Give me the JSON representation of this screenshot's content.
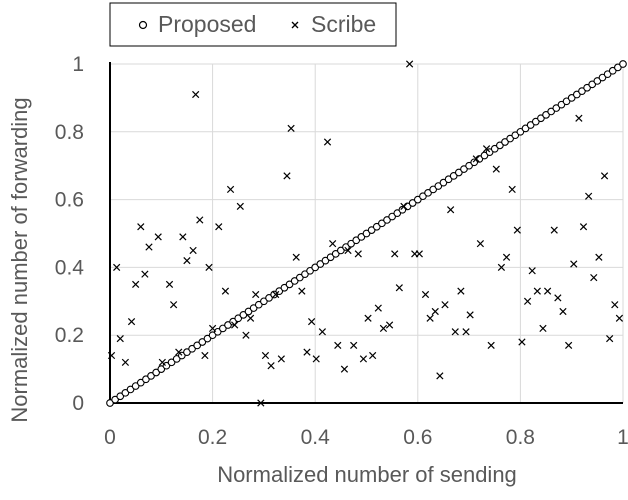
{
  "chart_data": {
    "type": "scatter",
    "title": "",
    "xlabel": "Normalized number of sending",
    "ylabel": "Normalized number of forwarding",
    "xlim": [
      0,
      1
    ],
    "ylim": [
      0,
      1
    ],
    "x_ticks": [
      "0",
      "0.2",
      "0.4",
      "0.6",
      "0.8",
      "1"
    ],
    "y_ticks": [
      "0",
      "0.2",
      "0.4",
      "0.6",
      "0.8",
      "1"
    ],
    "x_tick_values": [
      0,
      0.2,
      0.4,
      0.6,
      0.8,
      1
    ],
    "y_tick_values": [
      0,
      0.2,
      0.4,
      0.6,
      0.8,
      1
    ],
    "grid": true,
    "legend_position": "top-left",
    "series": [
      {
        "name": "Proposed",
        "marker": "circle",
        "color": "#000000",
        "x": [
          0,
          0.01,
          0.02,
          0.03,
          0.04,
          0.05,
          0.06,
          0.07,
          0.08,
          0.09,
          0.1,
          0.11,
          0.12,
          0.13,
          0.14,
          0.15,
          0.16,
          0.17,
          0.18,
          0.19,
          0.2,
          0.21,
          0.22,
          0.23,
          0.24,
          0.25,
          0.26,
          0.27,
          0.28,
          0.29,
          0.3,
          0.31,
          0.32,
          0.33,
          0.34,
          0.35,
          0.36,
          0.37,
          0.38,
          0.39,
          0.4,
          0.41,
          0.42,
          0.43,
          0.44,
          0.45,
          0.46,
          0.47,
          0.48,
          0.49,
          0.5,
          0.51,
          0.52,
          0.53,
          0.54,
          0.55,
          0.56,
          0.57,
          0.58,
          0.59,
          0.6,
          0.61,
          0.62,
          0.63,
          0.64,
          0.65,
          0.66,
          0.67,
          0.68,
          0.69,
          0.7,
          0.71,
          0.72,
          0.73,
          0.74,
          0.75,
          0.76,
          0.77,
          0.78,
          0.79,
          0.8,
          0.81,
          0.82,
          0.83,
          0.84,
          0.85,
          0.86,
          0.87,
          0.88,
          0.89,
          0.9,
          0.91,
          0.92,
          0.93,
          0.94,
          0.95,
          0.96,
          0.97,
          0.98,
          0.99,
          1
        ],
        "y": [
          0,
          0.01,
          0.02,
          0.03,
          0.04,
          0.05,
          0.06,
          0.07,
          0.08,
          0.09,
          0.1,
          0.11,
          0.12,
          0.13,
          0.14,
          0.15,
          0.16,
          0.17,
          0.18,
          0.19,
          0.2,
          0.21,
          0.22,
          0.23,
          0.24,
          0.25,
          0.26,
          0.27,
          0.28,
          0.29,
          0.3,
          0.31,
          0.32,
          0.33,
          0.34,
          0.35,
          0.36,
          0.37,
          0.38,
          0.39,
          0.4,
          0.41,
          0.42,
          0.43,
          0.44,
          0.45,
          0.46,
          0.47,
          0.48,
          0.49,
          0.5,
          0.51,
          0.52,
          0.53,
          0.54,
          0.55,
          0.56,
          0.57,
          0.58,
          0.59,
          0.6,
          0.61,
          0.62,
          0.63,
          0.64,
          0.65,
          0.66,
          0.67,
          0.68,
          0.69,
          0.7,
          0.71,
          0.72,
          0.73,
          0.74,
          0.75,
          0.76,
          0.77,
          0.78,
          0.79,
          0.8,
          0.81,
          0.82,
          0.83,
          0.84,
          0.85,
          0.86,
          0.87,
          0.88,
          0.89,
          0.9,
          0.91,
          0.92,
          0.93,
          0.94,
          0.95,
          0.96,
          0.97,
          0.98,
          0.99,
          1
        ]
      },
      {
        "name": "Scribe",
        "marker": "x",
        "color": "#000000",
        "x": [
          0.003,
          0.013,
          0.02,
          0.03,
          0.042,
          0.05,
          0.06,
          0.068,
          0.076,
          0.094,
          0.102,
          0.116,
          0.124,
          0.134,
          0.142,
          0.15,
          0.162,
          0.167,
          0.175,
          0.185,
          0.193,
          0.2,
          0.212,
          0.225,
          0.235,
          0.243,
          0.254,
          0.265,
          0.274,
          0.284,
          0.294,
          0.303,
          0.314,
          0.323,
          0.334,
          0.345,
          0.353,
          0.363,
          0.374,
          0.384,
          0.393,
          0.402,
          0.414,
          0.424,
          0.434,
          0.444,
          0.457,
          0.464,
          0.475,
          0.484,
          0.494,
          0.503,
          0.512,
          0.523,
          0.533,
          0.545,
          0.555,
          0.564,
          0.573,
          0.584,
          0.594,
          0.603,
          0.615,
          0.624,
          0.634,
          0.643,
          0.653,
          0.664,
          0.673,
          0.684,
          0.694,
          0.702,
          0.714,
          0.722,
          0.734,
          0.743,
          0.753,
          0.763,
          0.773,
          0.784,
          0.794,
          0.803,
          0.814,
          0.823,
          0.833,
          0.844,
          0.853,
          0.866,
          0.873,
          0.883,
          0.894,
          0.904,
          0.914,
          0.923,
          0.933,
          0.943,
          0.953,
          0.964,
          0.974,
          0.984,
          0.993
        ],
        "y": [
          0.14,
          0.4,
          0.19,
          0.12,
          0.24,
          0.35,
          0.52,
          0.38,
          0.46,
          0.49,
          0.12,
          0.35,
          0.29,
          0.15,
          0.49,
          0.42,
          0.45,
          0.91,
          0.54,
          0.14,
          0.4,
          0.22,
          0.52,
          0.33,
          0.63,
          0.23,
          0.58,
          0.2,
          0.25,
          0.32,
          0,
          0.14,
          0.11,
          0.32,
          0.13,
          0.67,
          0.81,
          0.43,
          0.33,
          0.15,
          0.24,
          0.13,
          0.21,
          0.77,
          0.47,
          0.17,
          0.1,
          0.45,
          0.17,
          0.44,
          0.13,
          0.25,
          0.14,
          0.28,
          0.22,
          0.23,
          0.44,
          0.34,
          0.58,
          1,
          0.44,
          0.44,
          0.32,
          0.25,
          0.27,
          0.08,
          0.29,
          0.57,
          0.21,
          0.33,
          0.21,
          0.26,
          0.72,
          0.47,
          0.75,
          0.17,
          0.69,
          0.4,
          0.43,
          0.63,
          0.51,
          0.18,
          0.3,
          0.39,
          0.33,
          0.22,
          0.33,
          0.51,
          0.31,
          0.27,
          0.17,
          0.41,
          0.84,
          0.52,
          0.61,
          0.37,
          0.43,
          0.67,
          0.19,
          0.29,
          0.25
        ]
      }
    ]
  }
}
